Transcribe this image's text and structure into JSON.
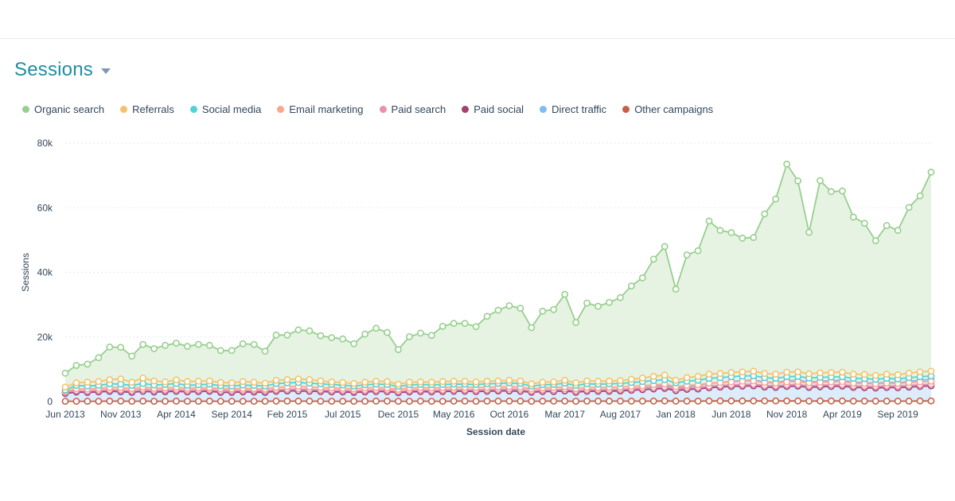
{
  "header": {
    "title": "Sessions",
    "dropdown_icon": "caret-down-icon"
  },
  "chart_data": {
    "type": "area",
    "title": "Sessions",
    "xlabel": "Session date",
    "ylabel": "Sessions",
    "ylim": [
      0,
      80000
    ],
    "yticks": [
      0,
      20000,
      40000,
      60000,
      80000
    ],
    "ytick_labels": [
      "0",
      "20k",
      "40k",
      "60k",
      "80k"
    ],
    "xtick_labels": [
      "Jun 2013",
      "Nov 2013",
      "Apr 2014",
      "Sep 2014",
      "Feb 2015",
      "Jul 2015",
      "Dec 2015",
      "May 2016",
      "Oct 2016",
      "Mar 2017",
      "Aug 2017",
      "Jan 2018",
      "Jun 2018",
      "Nov 2018",
      "Apr 2019",
      "Sep 2019"
    ],
    "x_start": "2013-06",
    "x_end": "2019-11",
    "grid": "horizontal",
    "legend_position": "top-left",
    "series": [
      {
        "name": "Organic search",
        "color": "#97cf8e",
        "fill": "#e6f3e2",
        "values": [
          8800,
          11200,
          11600,
          13600,
          16900,
          16800,
          14100,
          17700,
          16400,
          17400,
          18100,
          17100,
          17700,
          17400,
          15800,
          15800,
          17900,
          17700,
          15600,
          20600,
          20600,
          22200,
          21900,
          20400,
          19800,
          19400,
          17900,
          20900,
          22700,
          21400,
          16100,
          20100,
          21200,
          20500,
          23300,
          24200,
          24200,
          23200,
          26400,
          28300,
          29700,
          28900,
          22900,
          28000,
          28500,
          33200,
          24500,
          30500,
          29500,
          30700,
          32200,
          35800,
          38300,
          44100,
          48000,
          34800,
          45400,
          46700,
          55900,
          53000,
          52300,
          50600,
          50800,
          58100,
          62700,
          73500,
          68300,
          52400,
          68400,
          65000,
          65200,
          57100,
          55200,
          49800,
          54500,
          53000,
          60100,
          63700,
          71000
        ]
      },
      {
        "name": "Referrals",
        "color": "#f5c26b",
        "fill": "none",
        "values": [
          4500,
          5800,
          6000,
          6200,
          6800,
          7000,
          6000,
          7300,
          6400,
          6100,
          6700,
          6200,
          6300,
          6400,
          5900,
          5800,
          6200,
          6000,
          5700,
          6600,
          6800,
          7000,
          6800,
          6400,
          6100,
          5900,
          5600,
          6000,
          6300,
          6200,
          5400,
          6000,
          6100,
          6000,
          6200,
          6300,
          6300,
          6100,
          6300,
          6400,
          6600,
          6400,
          5500,
          6000,
          6100,
          6600,
          5800,
          6400,
          6300,
          6400,
          6500,
          6900,
          7300,
          7800,
          8200,
          6600,
          7400,
          7800,
          8500,
          8700,
          9000,
          9200,
          9400,
          8700,
          8500,
          9100,
          9200,
          8600,
          8900,
          9000,
          9100,
          8500,
          8400,
          8100,
          8500,
          8300,
          8800,
          9200,
          9400
        ]
      },
      {
        "name": "Social media",
        "color": "#51d3d9",
        "fill": "none",
        "values": [
          3600,
          5000,
          4800,
          5000,
          5500,
          5400,
          5000,
          5600,
          5100,
          5300,
          5600,
          5000,
          5200,
          5400,
          4900,
          4800,
          5100,
          5000,
          4800,
          5600,
          5800,
          5900,
          5700,
          5500,
          5300,
          5100,
          4800,
          5200,
          5400,
          5300,
          4700,
          5200,
          5300,
          5200,
          5300,
          5400,
          5400,
          5300,
          5500,
          5600,
          5800,
          5600,
          4800,
          5200,
          5300,
          5700,
          5000,
          5500,
          5400,
          5500,
          5600,
          5900,
          6200,
          6500,
          6800,
          5800,
          6300,
          6600,
          7200,
          7400,
          7700,
          7900,
          8000,
          7400,
          7200,
          7700,
          7800,
          7300,
          7500,
          7600,
          7700,
          7200,
          7100,
          6900,
          7200,
          7000,
          7400,
          7700,
          7900
        ]
      },
      {
        "name": "Email marketing",
        "color": "#fea58e",
        "fill": "none",
        "values": [
          3200,
          4000,
          3900,
          4100,
          4400,
          4300,
          4000,
          4500,
          4100,
          4200,
          4400,
          4100,
          4200,
          4300,
          4000,
          3900,
          4100,
          4000,
          3900,
          4400,
          4600,
          4700,
          4500,
          4300,
          4200,
          4100,
          3900,
          4200,
          4300,
          4200,
          3800,
          4200,
          4300,
          4200,
          4300,
          4400,
          4400,
          4300,
          4400,
          4500,
          4600,
          4500,
          3900,
          4200,
          4300,
          4600,
          4000,
          4400,
          4300,
          4400,
          4500,
          4700,
          4900,
          5200,
          5400,
          4600,
          5000,
          5200,
          5700,
          5900,
          6100,
          6300,
          6400,
          5900,
          5700,
          6100,
          6200,
          5800,
          6000,
          6100,
          6200,
          5700,
          5600,
          5500,
          5700,
          5600,
          5900,
          6100,
          6300
        ]
      },
      {
        "name": "Paid search",
        "color": "#ea90b1",
        "fill": "none",
        "values": [
          2900,
          3400,
          3300,
          3500,
          3700,
          3600,
          3400,
          3800,
          3500,
          3600,
          3700,
          3500,
          3600,
          3700,
          3400,
          3400,
          3500,
          3500,
          3400,
          3700,
          3800,
          3900,
          3800,
          3600,
          3500,
          3500,
          3300,
          3500,
          3600,
          3600,
          3200,
          3500,
          3600,
          3500,
          3600,
          3700,
          3700,
          3600,
          3700,
          3800,
          3900,
          3800,
          3300,
          3600,
          3600,
          3900,
          3400,
          3700,
          3700,
          3700,
          3800,
          4000,
          4200,
          4400,
          4600,
          3900,
          4300,
          4400,
          4800,
          5000,
          5200,
          5300,
          5400,
          5000,
          4900,
          5200,
          5300,
          4900,
          5100,
          5200,
          5300,
          4900,
          4800,
          4700,
          4900,
          4800,
          5000,
          5200,
          5400
        ]
      },
      {
        "name": "Paid social",
        "color": "#a2426e",
        "fill": "none",
        "values": [
          2600,
          3000,
          2900,
          3000,
          3200,
          3100,
          2900,
          3200,
          3000,
          3100,
          3200,
          3000,
          3100,
          3200,
          2900,
          2900,
          3000,
          3000,
          2900,
          3200,
          3300,
          3300,
          3200,
          3100,
          3000,
          3000,
          2900,
          3000,
          3100,
          3100,
          2800,
          3000,
          3100,
          3000,
          3100,
          3200,
          3200,
          3100,
          3200,
          3300,
          3300,
          3200,
          2900,
          3100,
          3100,
          3300,
          2900,
          3200,
          3200,
          3200,
          3300,
          3500,
          3700,
          3900,
          4100,
          3400,
          3800,
          3900,
          4300,
          4500,
          4700,
          4800,
          4900,
          4500,
          4400,
          4700,
          4800,
          4400,
          4600,
          4700,
          4800,
          4400,
          4300,
          4200,
          4400,
          4300,
          4500,
          4700,
          4900
        ]
      },
      {
        "name": "Direct traffic",
        "color": "#7fbcf1",
        "fill": "#dcecfb",
        "values": [
          2400,
          2900,
          2800,
          3000,
          3100,
          3000,
          2800,
          3200,
          2900,
          3000,
          3200,
          3000,
          3100,
          3200,
          2800,
          2800,
          3000,
          2900,
          2800,
          3200,
          3400,
          3500,
          3300,
          3200,
          3000,
          3000,
          2800,
          3000,
          3200,
          3100,
          2700,
          3100,
          3200,
          3100,
          3200,
          3300,
          3300,
          3200,
          3400,
          3500,
          3600,
          3500,
          3000,
          3300,
          3400,
          3700,
          3200,
          3500,
          3500,
          3600,
          3700,
          4000,
          4300,
          4700,
          5000,
          4100,
          4700,
          5000,
          5600,
          5900,
          6300,
          6500,
          6700,
          6100,
          5900,
          6500,
          6600,
          6100,
          6300,
          6500,
          6600,
          6000,
          5900,
          5700,
          6000,
          5800,
          6300,
          6600,
          6900
        ]
      },
      {
        "name": "Other campaigns",
        "color": "#c95f48",
        "fill": "none",
        "values": [
          100,
          100,
          100,
          100,
          150,
          150,
          100,
          150,
          100,
          100,
          150,
          100,
          100,
          150,
          100,
          100,
          100,
          100,
          100,
          150,
          150,
          150,
          150,
          100,
          100,
          100,
          100,
          100,
          150,
          150,
          100,
          100,
          150,
          100,
          100,
          150,
          150,
          100,
          150,
          150,
          150,
          150,
          100,
          150,
          150,
          150,
          100,
          150,
          150,
          150,
          150,
          150,
          150,
          150,
          200,
          150,
          150,
          150,
          200,
          200,
          200,
          200,
          200,
          200,
          200,
          200,
          200,
          150,
          200,
          200,
          200,
          150,
          150,
          150,
          150,
          150,
          150,
          200,
          200
        ]
      }
    ]
  }
}
